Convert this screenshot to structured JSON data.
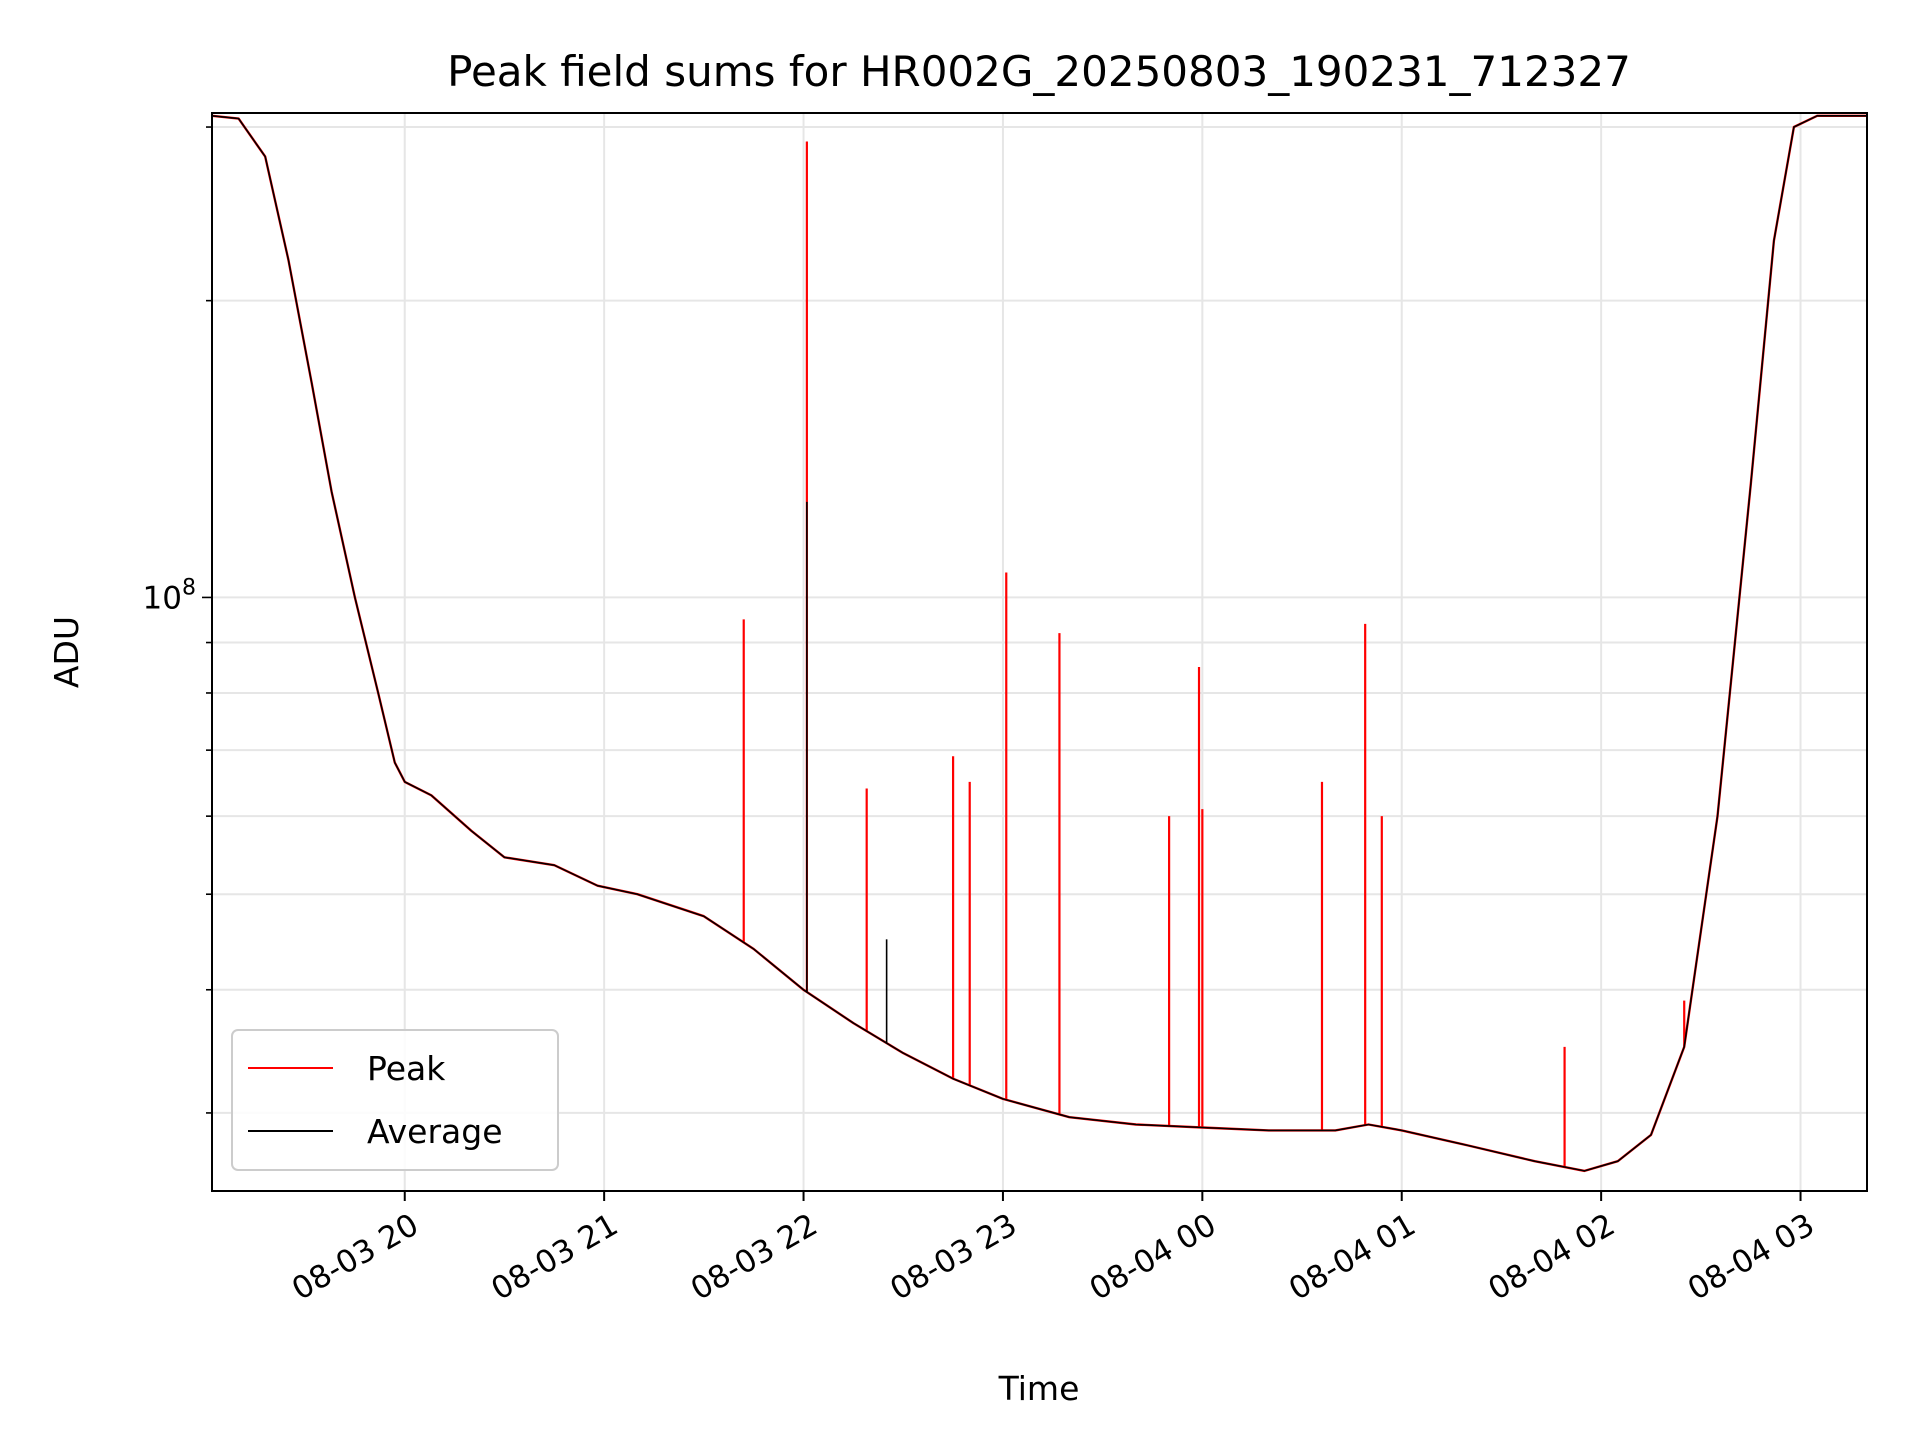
{
  "chart_data": {
    "type": "line",
    "title": "Peak field sums for HR002G_20250803_190231_712327",
    "xlabel": "Time",
    "ylabel": "ADU",
    "yscale": "log",
    "ylim": [
      25000000,
      310000000
    ],
    "xlim": [
      "2025-08-03 19:02",
      "2025-08-04 03:20"
    ],
    "x_tick_labels": [
      "08-03 20",
      "08-03 21",
      "08-03 22",
      "08-03 23",
      "08-04 00",
      "08-04 01",
      "08-04 02",
      "08-04 03"
    ],
    "x_ticks": [
      "2025-08-03 20:00",
      "2025-08-03 21:00",
      "2025-08-03 22:00",
      "2025-08-03 23:00",
      "2025-08-04 00:00",
      "2025-08-04 01:00",
      "2025-08-04 02:00",
      "2025-08-04 03:00"
    ],
    "y_tick_labels": [
      {
        "base": "10",
        "exp": "8"
      }
    ],
    "y_ticks": [
      100000000
    ],
    "grid": true,
    "legend": "lower-left",
    "series": [
      {
        "name": "Peak",
        "color": "#ff0000",
        "baseline": [
          [
            "2025-08-03 19:02",
            308000000
          ],
          [
            "2025-08-03 19:10",
            306000000
          ],
          [
            "2025-08-03 19:18",
            280000000
          ],
          [
            "2025-08-03 19:25",
            220000000
          ],
          [
            "2025-08-03 19:32",
            165000000
          ],
          [
            "2025-08-03 19:38",
            128000000
          ],
          [
            "2025-08-03 19:45",
            100000000
          ],
          [
            "2025-08-03 19:52",
            80000000
          ],
          [
            "2025-08-03 19:57",
            68000000
          ],
          [
            "2025-08-03 20:00",
            65000000
          ],
          [
            "2025-08-03 20:08",
            63000000
          ],
          [
            "2025-08-03 20:20",
            58000000
          ],
          [
            "2025-08-03 20:30",
            54500000
          ],
          [
            "2025-08-03 20:45",
            53500000
          ],
          [
            "2025-08-03 20:58",
            51000000
          ],
          [
            "2025-08-03 21:10",
            50000000
          ],
          [
            "2025-08-03 21:30",
            47500000
          ],
          [
            "2025-08-03 21:45",
            44000000
          ],
          [
            "2025-08-03 22:00",
            40000000
          ],
          [
            "2025-08-03 22:15",
            37000000
          ],
          [
            "2025-08-03 22:30",
            34500000
          ],
          [
            "2025-08-03 22:45",
            32500000
          ],
          [
            "2025-08-03 23:00",
            31000000
          ],
          [
            "2025-08-03 23:20",
            29700000
          ],
          [
            "2025-08-03 23:40",
            29200000
          ],
          [
            "2025-08-04 00:00",
            29000000
          ],
          [
            "2025-08-04 00:20",
            28800000
          ],
          [
            "2025-08-04 00:40",
            28800000
          ],
          [
            "2025-08-04 00:50",
            29200000
          ],
          [
            "2025-08-04 01:00",
            28800000
          ],
          [
            "2025-08-04 01:20",
            27800000
          ],
          [
            "2025-08-04 01:40",
            26800000
          ],
          [
            "2025-08-04 01:55",
            26200000
          ],
          [
            "2025-08-04 02:05",
            26800000
          ],
          [
            "2025-08-04 02:15",
            28500000
          ],
          [
            "2025-08-04 02:25",
            35000000
          ],
          [
            "2025-08-04 02:35",
            60000000
          ],
          [
            "2025-08-04 02:45",
            130000000
          ],
          [
            "2025-08-04 02:52",
            230000000
          ],
          [
            "2025-08-04 02:58",
            300000000
          ],
          [
            "2025-08-04 03:05",
            308000000
          ],
          [
            "2025-08-04 03:20",
            308000000
          ]
        ],
        "spikes": [
          [
            "2025-08-03 21:42",
            95000000
          ],
          [
            "2025-08-03 22:01",
            290000000
          ],
          [
            "2025-08-03 22:19",
            64000000
          ],
          [
            "2025-08-03 22:45",
            69000000
          ],
          [
            "2025-08-03 22:50",
            65000000
          ],
          [
            "2025-08-03 23:01",
            106000000
          ],
          [
            "2025-08-03 23:17",
            92000000
          ],
          [
            "2025-08-03 23:50",
            60000000
          ],
          [
            "2025-08-03 23:59",
            85000000
          ],
          [
            "2025-08-04 00:00",
            61000000
          ],
          [
            "2025-08-04 00:49",
            94000000
          ],
          [
            "2025-08-04 00:54",
            60000000
          ],
          [
            "2025-08-04 00:36",
            65000000
          ],
          [
            "2025-08-04 01:49",
            35000000
          ],
          [
            "2025-08-04 02:25",
            39000000
          ]
        ]
      },
      {
        "name": "Average",
        "color": "#000000",
        "baseline": [
          [
            "2025-08-03 19:02",
            308000000
          ],
          [
            "2025-08-03 19:10",
            306000000
          ],
          [
            "2025-08-03 19:18",
            280000000
          ],
          [
            "2025-08-03 19:25",
            220000000
          ],
          [
            "2025-08-03 19:32",
            165000000
          ],
          [
            "2025-08-03 19:38",
            128000000
          ],
          [
            "2025-08-03 19:45",
            100000000
          ],
          [
            "2025-08-03 19:52",
            80000000
          ],
          [
            "2025-08-03 19:57",
            68000000
          ],
          [
            "2025-08-03 20:00",
            65000000
          ],
          [
            "2025-08-03 20:08",
            63000000
          ],
          [
            "2025-08-03 20:20",
            58000000
          ],
          [
            "2025-08-03 20:30",
            54500000
          ],
          [
            "2025-08-03 20:45",
            53500000
          ],
          [
            "2025-08-03 20:58",
            51000000
          ],
          [
            "2025-08-03 21:10",
            50000000
          ],
          [
            "2025-08-03 21:30",
            47500000
          ],
          [
            "2025-08-03 21:45",
            44000000
          ],
          [
            "2025-08-03 22:00",
            40000000
          ],
          [
            "2025-08-03 22:15",
            37000000
          ],
          [
            "2025-08-03 22:30",
            34500000
          ],
          [
            "2025-08-03 22:45",
            32500000
          ],
          [
            "2025-08-03 23:00",
            31000000
          ],
          [
            "2025-08-03 23:20",
            29700000
          ],
          [
            "2025-08-03 23:40",
            29200000
          ],
          [
            "2025-08-04 00:00",
            29000000
          ],
          [
            "2025-08-04 00:20",
            28800000
          ],
          [
            "2025-08-04 00:40",
            28800000
          ],
          [
            "2025-08-04 00:50",
            29200000
          ],
          [
            "2025-08-04 01:00",
            28800000
          ],
          [
            "2025-08-04 01:20",
            27800000
          ],
          [
            "2025-08-04 01:40",
            26800000
          ],
          [
            "2025-08-04 01:55",
            26200000
          ],
          [
            "2025-08-04 02:05",
            26800000
          ],
          [
            "2025-08-04 02:15",
            28500000
          ],
          [
            "2025-08-04 02:25",
            35000000
          ],
          [
            "2025-08-04 02:35",
            60000000
          ],
          [
            "2025-08-04 02:45",
            130000000
          ],
          [
            "2025-08-04 02:52",
            230000000
          ],
          [
            "2025-08-04 02:58",
            300000000
          ],
          [
            "2025-08-04 03:05",
            308000000
          ],
          [
            "2025-08-04 03:20",
            308000000
          ]
        ],
        "spikes": [
          [
            "2025-08-03 22:01",
            125000000
          ],
          [
            "2025-08-03 22:25",
            45000000
          ]
        ]
      }
    ]
  }
}
